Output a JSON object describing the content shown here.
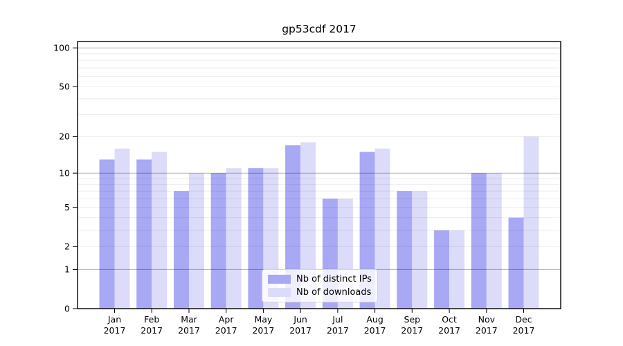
{
  "title": "gp53cdf 2017",
  "chart_data": {
    "type": "bar",
    "title": "gp53cdf 2017",
    "categories": [
      "Jan",
      "Feb",
      "Mar",
      "Apr",
      "May",
      "Jun",
      "Jul",
      "Aug",
      "Sep",
      "Oct",
      "Nov",
      "Dec"
    ],
    "year": "2017",
    "series": [
      {
        "name": "Nb of distinct IPs",
        "color": "#a8a8f4",
        "values": [
          13,
          13,
          7,
          10,
          11,
          17,
          6,
          15,
          7,
          3,
          10,
          4
        ]
      },
      {
        "name": "Nb of downloads",
        "color": "#dcdcfa",
        "values": [
          16,
          15,
          10,
          11,
          11,
          18,
          6,
          16,
          7,
          3,
          10,
          20
        ]
      }
    ],
    "y_scale": "log10(value+1)",
    "ylim": [
      0,
      100
    ],
    "y_ticks": [
      100,
      50,
      20,
      10,
      5,
      2,
      1,
      0
    ],
    "grid": {
      "major_lines": [
        1,
        10,
        100
      ],
      "minor_lines": [
        2,
        3,
        4,
        5,
        6,
        7,
        8,
        9,
        20,
        30,
        40,
        50,
        60,
        70,
        80,
        90
      ],
      "major_color": "rgba(0,0,0,0.30)",
      "minor_color": "rgba(0,0,0,0.07)"
    },
    "legend_position": "bottom-center",
    "axis_color": "#000000",
    "background_color": "#ffffff"
  }
}
